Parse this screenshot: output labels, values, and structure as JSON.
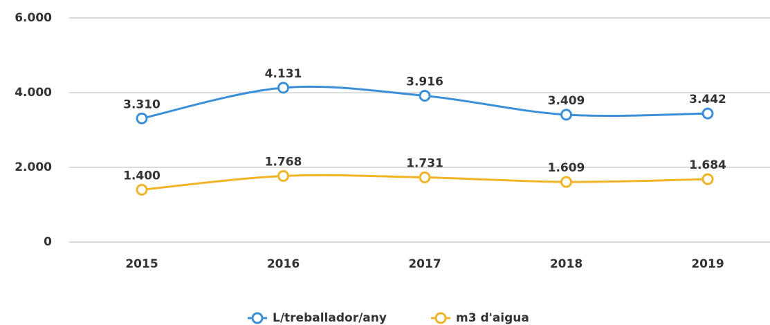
{
  "chart_data": {
    "type": "line",
    "categories": [
      "2015",
      "2016",
      "2017",
      "2018",
      "2019"
    ],
    "series": [
      {
        "name": "L/treballador/any",
        "color": "#3a8fd8",
        "values": [
          3310,
          4131,
          3916,
          3409,
          3442
        ],
        "value_labels": [
          "3.310",
          "4.131",
          "3.916",
          "3.409",
          "3.442"
        ]
      },
      {
        "name": "m3 d'aigua",
        "color": "#f0b428",
        "values": [
          1400,
          1768,
          1731,
          1609,
          1684
        ],
        "value_labels": [
          "1.400",
          "1.768",
          "1.731",
          "1.609",
          "1.684"
        ]
      }
    ],
    "ylim": [
      0,
      6000
    ],
    "yticks": [
      0,
      {
        "value": 2000,
        "label": "2.000"
      },
      {
        "value": 4000,
        "label": "4.000"
      },
      {
        "value": 6000,
        "label": "6.000"
      }
    ],
    "grid": true,
    "legend": "bottom"
  }
}
